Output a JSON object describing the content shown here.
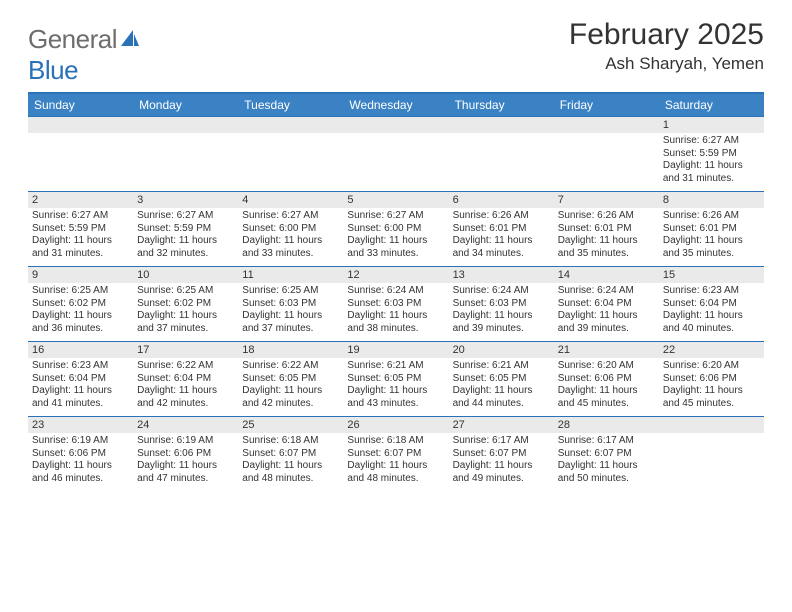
{
  "logo": {
    "general": "General",
    "blue": "Blue"
  },
  "title": "February 2025",
  "location": "Ash Sharyah, Yemen",
  "header_bg": "#3b82c4",
  "border_color": "#2a71b8",
  "daynum_bg": "#eaeaea",
  "text_color": "#333333",
  "day_headers": [
    "Sunday",
    "Monday",
    "Tuesday",
    "Wednesday",
    "Thursday",
    "Friday",
    "Saturday"
  ],
  "weeks": [
    [
      {
        "n": "",
        "sr": "",
        "ss": "",
        "dl": ""
      },
      {
        "n": "",
        "sr": "",
        "ss": "",
        "dl": ""
      },
      {
        "n": "",
        "sr": "",
        "ss": "",
        "dl": ""
      },
      {
        "n": "",
        "sr": "",
        "ss": "",
        "dl": ""
      },
      {
        "n": "",
        "sr": "",
        "ss": "",
        "dl": ""
      },
      {
        "n": "",
        "sr": "",
        "ss": "",
        "dl": ""
      },
      {
        "n": "1",
        "sr": "Sunrise: 6:27 AM",
        "ss": "Sunset: 5:59 PM",
        "dl": "Daylight: 11 hours and 31 minutes."
      }
    ],
    [
      {
        "n": "2",
        "sr": "Sunrise: 6:27 AM",
        "ss": "Sunset: 5:59 PM",
        "dl": "Daylight: 11 hours and 31 minutes."
      },
      {
        "n": "3",
        "sr": "Sunrise: 6:27 AM",
        "ss": "Sunset: 5:59 PM",
        "dl": "Daylight: 11 hours and 32 minutes."
      },
      {
        "n": "4",
        "sr": "Sunrise: 6:27 AM",
        "ss": "Sunset: 6:00 PM",
        "dl": "Daylight: 11 hours and 33 minutes."
      },
      {
        "n": "5",
        "sr": "Sunrise: 6:27 AM",
        "ss": "Sunset: 6:00 PM",
        "dl": "Daylight: 11 hours and 33 minutes."
      },
      {
        "n": "6",
        "sr": "Sunrise: 6:26 AM",
        "ss": "Sunset: 6:01 PM",
        "dl": "Daylight: 11 hours and 34 minutes."
      },
      {
        "n": "7",
        "sr": "Sunrise: 6:26 AM",
        "ss": "Sunset: 6:01 PM",
        "dl": "Daylight: 11 hours and 35 minutes."
      },
      {
        "n": "8",
        "sr": "Sunrise: 6:26 AM",
        "ss": "Sunset: 6:01 PM",
        "dl": "Daylight: 11 hours and 35 minutes."
      }
    ],
    [
      {
        "n": "9",
        "sr": "Sunrise: 6:25 AM",
        "ss": "Sunset: 6:02 PM",
        "dl": "Daylight: 11 hours and 36 minutes."
      },
      {
        "n": "10",
        "sr": "Sunrise: 6:25 AM",
        "ss": "Sunset: 6:02 PM",
        "dl": "Daylight: 11 hours and 37 minutes."
      },
      {
        "n": "11",
        "sr": "Sunrise: 6:25 AM",
        "ss": "Sunset: 6:03 PM",
        "dl": "Daylight: 11 hours and 37 minutes."
      },
      {
        "n": "12",
        "sr": "Sunrise: 6:24 AM",
        "ss": "Sunset: 6:03 PM",
        "dl": "Daylight: 11 hours and 38 minutes."
      },
      {
        "n": "13",
        "sr": "Sunrise: 6:24 AM",
        "ss": "Sunset: 6:03 PM",
        "dl": "Daylight: 11 hours and 39 minutes."
      },
      {
        "n": "14",
        "sr": "Sunrise: 6:24 AM",
        "ss": "Sunset: 6:04 PM",
        "dl": "Daylight: 11 hours and 39 minutes."
      },
      {
        "n": "15",
        "sr": "Sunrise: 6:23 AM",
        "ss": "Sunset: 6:04 PM",
        "dl": "Daylight: 11 hours and 40 minutes."
      }
    ],
    [
      {
        "n": "16",
        "sr": "Sunrise: 6:23 AM",
        "ss": "Sunset: 6:04 PM",
        "dl": "Daylight: 11 hours and 41 minutes."
      },
      {
        "n": "17",
        "sr": "Sunrise: 6:22 AM",
        "ss": "Sunset: 6:04 PM",
        "dl": "Daylight: 11 hours and 42 minutes."
      },
      {
        "n": "18",
        "sr": "Sunrise: 6:22 AM",
        "ss": "Sunset: 6:05 PM",
        "dl": "Daylight: 11 hours and 42 minutes."
      },
      {
        "n": "19",
        "sr": "Sunrise: 6:21 AM",
        "ss": "Sunset: 6:05 PM",
        "dl": "Daylight: 11 hours and 43 minutes."
      },
      {
        "n": "20",
        "sr": "Sunrise: 6:21 AM",
        "ss": "Sunset: 6:05 PM",
        "dl": "Daylight: 11 hours and 44 minutes."
      },
      {
        "n": "21",
        "sr": "Sunrise: 6:20 AM",
        "ss": "Sunset: 6:06 PM",
        "dl": "Daylight: 11 hours and 45 minutes."
      },
      {
        "n": "22",
        "sr": "Sunrise: 6:20 AM",
        "ss": "Sunset: 6:06 PM",
        "dl": "Daylight: 11 hours and 45 minutes."
      }
    ],
    [
      {
        "n": "23",
        "sr": "Sunrise: 6:19 AM",
        "ss": "Sunset: 6:06 PM",
        "dl": "Daylight: 11 hours and 46 minutes."
      },
      {
        "n": "24",
        "sr": "Sunrise: 6:19 AM",
        "ss": "Sunset: 6:06 PM",
        "dl": "Daylight: 11 hours and 47 minutes."
      },
      {
        "n": "25",
        "sr": "Sunrise: 6:18 AM",
        "ss": "Sunset: 6:07 PM",
        "dl": "Daylight: 11 hours and 48 minutes."
      },
      {
        "n": "26",
        "sr": "Sunrise: 6:18 AM",
        "ss": "Sunset: 6:07 PM",
        "dl": "Daylight: 11 hours and 48 minutes."
      },
      {
        "n": "27",
        "sr": "Sunrise: 6:17 AM",
        "ss": "Sunset: 6:07 PM",
        "dl": "Daylight: 11 hours and 49 minutes."
      },
      {
        "n": "28",
        "sr": "Sunrise: 6:17 AM",
        "ss": "Sunset: 6:07 PM",
        "dl": "Daylight: 11 hours and 50 minutes."
      },
      {
        "n": "",
        "sr": "",
        "ss": "",
        "dl": ""
      }
    ]
  ]
}
